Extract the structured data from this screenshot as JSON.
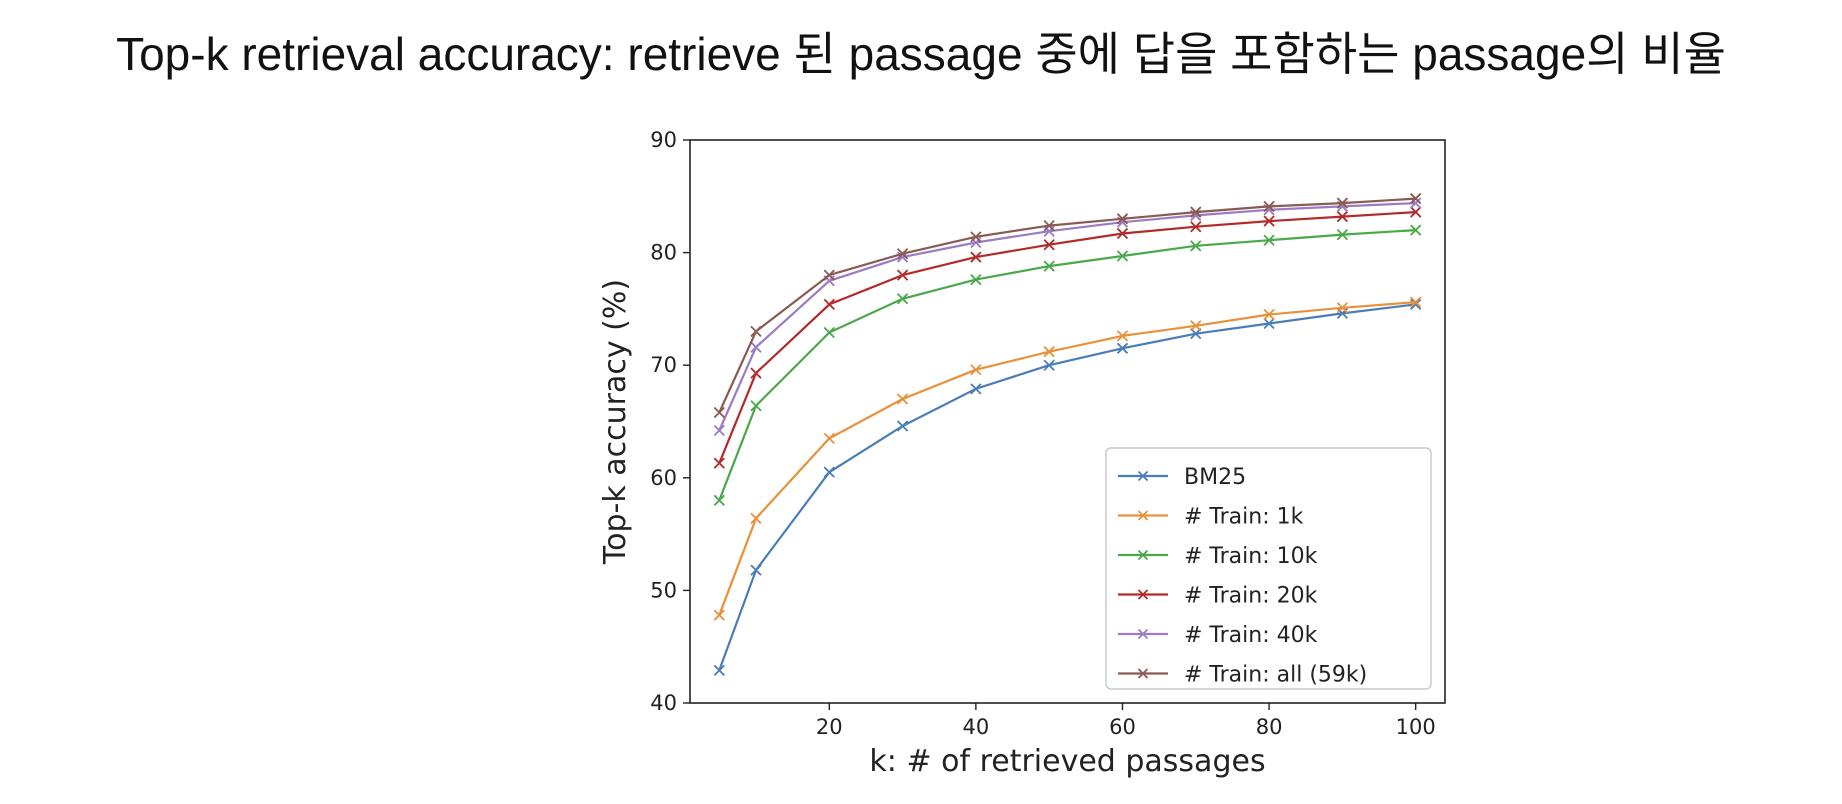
{
  "slide": {
    "title": "Top-k retrieval accuracy: retrieve 된 passage 중에 답을 포함하는 passage의 비율"
  },
  "chart_data": {
    "type": "line",
    "xlabel": "k: # of retrieved passages",
    "ylabel": "Top-k accuracy (%)",
    "xlim": [
      1,
      104
    ],
    "ylim": [
      40,
      90
    ],
    "xticks": [
      20,
      40,
      60,
      80,
      100
    ],
    "yticks": [
      40,
      50,
      60,
      70,
      80,
      90
    ],
    "grid": false,
    "marker": "x",
    "legend_position": "lower-right",
    "x": [
      5,
      10,
      20,
      30,
      40,
      50,
      60,
      70,
      80,
      90,
      100
    ],
    "series": [
      {
        "name": "BM25",
        "color": "#4a7db8",
        "values": [
          42.9,
          51.8,
          60.5,
          64.6,
          67.9,
          70.0,
          71.5,
          72.8,
          73.7,
          74.6,
          75.4
        ]
      },
      {
        "name": "# Train: 1k",
        "color": "#e8913a",
        "values": [
          47.8,
          56.4,
          63.5,
          67.0,
          69.6,
          71.2,
          72.6,
          73.5,
          74.5,
          75.1,
          75.6
        ]
      },
      {
        "name": "# Train: 10k",
        "color": "#4aa84a",
        "values": [
          58.0,
          66.4,
          72.9,
          75.9,
          77.6,
          78.8,
          79.7,
          80.6,
          81.1,
          81.6,
          82.0
        ]
      },
      {
        "name": "# Train: 20k",
        "color": "#b32a2a",
        "values": [
          61.3,
          69.3,
          75.4,
          78.0,
          79.6,
          80.7,
          81.7,
          82.3,
          82.8,
          83.2,
          83.6
        ]
      },
      {
        "name": "# Train: 40k",
        "color": "#9a7bc4",
        "values": [
          64.2,
          71.6,
          77.5,
          79.6,
          80.9,
          81.9,
          82.7,
          83.3,
          83.8,
          84.1,
          84.4
        ]
      },
      {
        "name": "# Train: all (59k)",
        "color": "#8a5a52",
        "values": [
          65.8,
          73.0,
          78.0,
          79.9,
          81.4,
          82.4,
          83.0,
          83.6,
          84.1,
          84.4,
          84.8
        ]
      }
    ]
  }
}
